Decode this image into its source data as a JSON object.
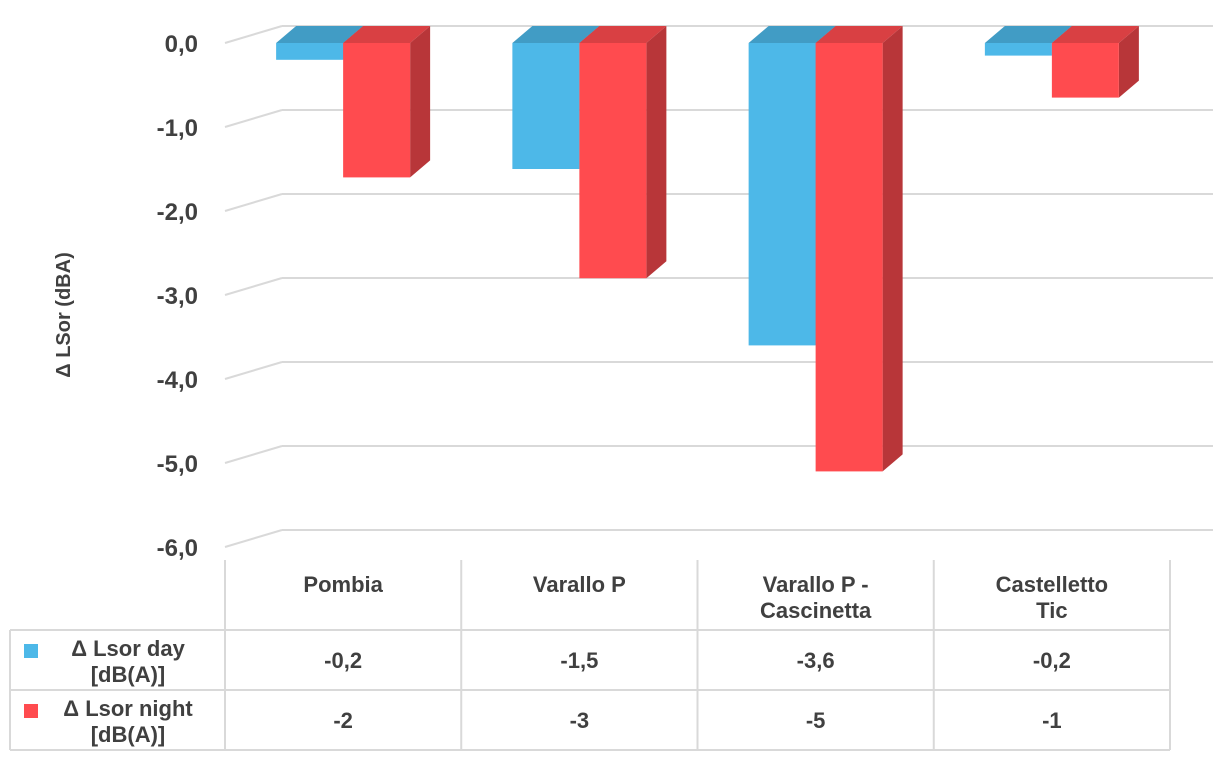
{
  "chart_data": {
    "type": "bar",
    "title": "",
    "ylabel": "Δ LSor (dBA)",
    "xlabel": "",
    "ylim": [
      -6,
      0
    ],
    "yticks": [
      "0,0",
      "-1,0",
      "-2,0",
      "-3,0",
      "-4,0",
      "-5,0",
      "-6,0"
    ],
    "categories": [
      "Pombia",
      "Varallo P",
      "Varallo P -\nCascinetta",
      "Castelletto\nTic"
    ],
    "series": [
      {
        "name": "Δ Lsor day\n[dB(A)]",
        "values": [
          -0.2,
          -1.5,
          -3.6,
          -0.15
        ],
        "labels": [
          "-0,2",
          "-1,5",
          "-3,6",
          "-0,2"
        ],
        "color": "#4DB8E8"
      },
      {
        "name": "Δ Lsor night\n[dB(A)]",
        "values": [
          -1.6,
          -2.8,
          -5.1,
          -0.65
        ],
        "labels": [
          "-2",
          "-3",
          "-5",
          "-1"
        ],
        "color": "#FF4B4F"
      }
    ],
    "grid": true,
    "legend": "data-table"
  }
}
